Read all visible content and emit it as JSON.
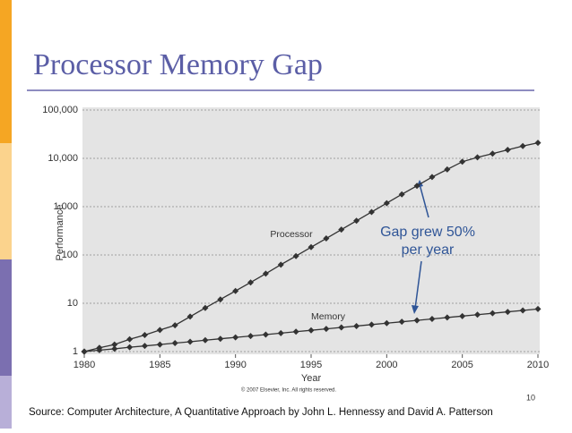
{
  "slide": {
    "title": "Processor Memory Gap",
    "source": "Source: Computer Architecture, A Quantitative Approach by John L. Hennessy and David A. Patterson",
    "page_number": "10"
  },
  "chart_data": {
    "type": "line",
    "x_label": "Year",
    "y_label": "Performance",
    "credit": "© 2007 Elsevier, Inc. All rights reserved.",
    "annotation": [
      "Gap grew 50%",
      "per year"
    ],
    "log_y": true,
    "grid": true,
    "xlim": [
      1980,
      2010
    ],
    "xticks": [
      1980,
      1985,
      1990,
      1995,
      2000,
      2005,
      2010
    ],
    "ylim": [
      1,
      100000
    ],
    "yticks": [
      1,
      10,
      100,
      {
        "value": 1000,
        "label": "1,000"
      },
      {
        "value": 10000,
        "label": "10,000"
      },
      {
        "value": 100000,
        "label": "100,000"
      }
    ],
    "x": [
      1980,
      1981,
      1982,
      1983,
      1984,
      1985,
      1986,
      1987,
      1988,
      1989,
      1990,
      1991,
      1992,
      1993,
      1994,
      1995,
      1996,
      1997,
      1998,
      1999,
      2000,
      2001,
      2002,
      2003,
      2004,
      2005,
      2006,
      2007,
      2008,
      2009,
      2010
    ],
    "series": [
      {
        "name": "Processor",
        "color": "#333333",
        "values": [
          1,
          1.2,
          1.4,
          1.8,
          2.2,
          2.8,
          3.5,
          5.3,
          8,
          12,
          18,
          27,
          41,
          63,
          95,
          145,
          220,
          335,
          510,
          775,
          1180,
          1800,
          2700,
          4100,
          5900,
          8500,
          10500,
          12500,
          15000,
          18000,
          21000
        ]
      },
      {
        "name": "Memory",
        "color": "#333333",
        "values": [
          1,
          1.07,
          1.14,
          1.23,
          1.31,
          1.4,
          1.5,
          1.6,
          1.72,
          1.84,
          1.97,
          2.1,
          2.25,
          2.41,
          2.58,
          2.76,
          2.95,
          3.16,
          3.38,
          3.62,
          3.87,
          4.14,
          4.43,
          4.74,
          5.07,
          5.43,
          5.81,
          6.21,
          6.65,
          7.11,
          7.61
        ]
      }
    ]
  }
}
